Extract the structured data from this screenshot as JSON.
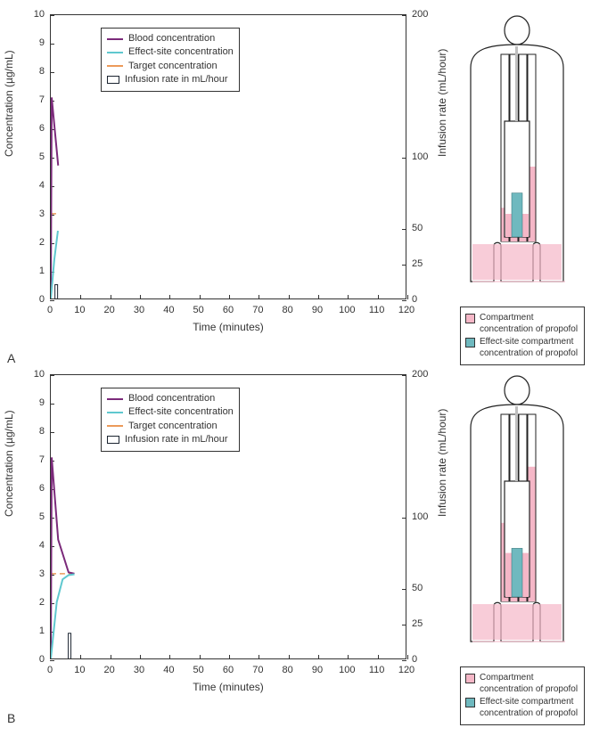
{
  "colors": {
    "blood": "#7b2a7a",
    "effect": "#5fc8cf",
    "target": "#ec9a5a",
    "infbar": "#1b2430",
    "pink": "#f5b7c7",
    "teal": "#6fb9bf",
    "grey": "#bfbfbf"
  },
  "chart": {
    "y_left_label": "Concentration (µg/mL)",
    "y_right_label": "Infusion rate (mL/hour)",
    "x_label": "Time (minutes)",
    "y_left_ticks": [
      0,
      1,
      2,
      3,
      4,
      5,
      6,
      7,
      8,
      9,
      10
    ],
    "y_left_lim": [
      0,
      10
    ],
    "y_right_ticks": [
      0,
      25,
      50,
      100,
      200
    ],
    "y_right_lim": [
      0,
      200
    ],
    "x_ticks": [
      0,
      10,
      20,
      30,
      40,
      50,
      60,
      70,
      80,
      90,
      100,
      110,
      120
    ],
    "x_lim": [
      0,
      120
    ],
    "legend": {
      "blood": "Blood concentration",
      "effect": "Effect-site concentration",
      "target": "Target concentration",
      "inf": "Infusion rate in mL/hour"
    }
  },
  "body_legend": {
    "pink": "Compartment concentration of propofol",
    "teal": "Effect-site compartment concentration of propofol"
  },
  "panels": {
    "A": {
      "letter": "A",
      "target_level": 3.0,
      "blood": [
        [
          0,
          0
        ],
        [
          0.3,
          7.1
        ],
        [
          2.5,
          4.7
        ]
      ],
      "effect": [
        [
          0,
          0
        ],
        [
          1.2,
          1.4
        ],
        [
          2.4,
          2.4
        ]
      ],
      "target_line_end_x": 2.2,
      "inf_bar_x": 2.0,
      "inf_bar_h": 10,
      "compartments": [
        18,
        14,
        33,
        40
      ],
      "teal_bucket_fill": 0.38,
      "bucket_pink_fill": 0.2
    },
    "B": {
      "letter": "B",
      "target_level": 3.0,
      "blood": [
        [
          0,
          0
        ],
        [
          0.3,
          7.1
        ],
        [
          2.5,
          4.2
        ],
        [
          6,
          3.05
        ],
        [
          8,
          3.0
        ]
      ],
      "effect": [
        [
          0,
          0
        ],
        [
          2,
          2.0
        ],
        [
          4,
          2.8
        ],
        [
          6,
          2.95
        ],
        [
          8,
          2.98
        ]
      ],
      "target_line_end_x": 8,
      "inf_bar_x": 6.5,
      "inf_bar_h": 18,
      "compartments": [
        42,
        30,
        60,
        72
      ],
      "teal_bucket_fill": 0.42,
      "bucket_pink_fill": 0.38
    }
  }
}
